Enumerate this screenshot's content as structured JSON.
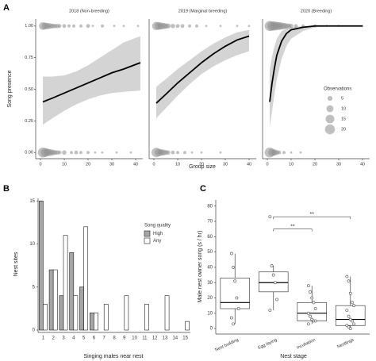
{
  "chart_data": [
    {
      "type": "facet-logistic",
      "panel": "A",
      "y_label": "Song presence",
      "x_label": "Group size",
      "xlim": [
        -2,
        43
      ],
      "ylim": [
        -0.03,
        1.03
      ],
      "xticks": [
        0,
        10,
        20,
        30,
        40
      ],
      "yticks": [
        {
          "value": 0,
          "label": "0.00"
        },
        {
          "value": 0.25,
          "label": "0.25"
        },
        {
          "value": 0.5,
          "label": "0.50"
        },
        {
          "value": 0.75,
          "label": "0.75"
        },
        {
          "value": 1,
          "label": "1.00"
        }
      ],
      "legend_title": "Observations",
      "legend_sizes": [
        5,
        10,
        15,
        20
      ],
      "facets": [
        {
          "title": "2018 (Non-breeding)",
          "x": [
            1,
            5,
            10,
            15,
            20,
            25,
            30,
            35,
            42
          ],
          "fit": [
            0.4,
            0.43,
            0.47,
            0.51,
            0.55,
            0.59,
            0.63,
            0.66,
            0.71
          ],
          "lower": [
            0.22,
            0.27,
            0.33,
            0.38,
            0.42,
            0.45,
            0.47,
            0.48,
            0.49
          ],
          "upper": [
            0.6,
            0.6,
            0.61,
            0.64,
            0.69,
            0.75,
            0.81,
            0.87,
            0.92
          ],
          "present": {
            "x": [
              1,
              2,
              3,
              4,
              5,
              6,
              7,
              8,
              10,
              12,
              14,
              17,
              20,
              22,
              26,
              31,
              35,
              41
            ],
            "n": [
              12,
              10,
              8,
              6,
              5,
              4,
              4,
              3,
              3,
              2,
              2,
              2,
              3,
              1,
              2,
              1,
              1,
              1
            ]
          },
          "absent": {
            "x": [
              1,
              2,
              3,
              4,
              5,
              6,
              7,
              8,
              10,
              13,
              15,
              17,
              20,
              23,
              26,
              32,
              38
            ],
            "n": [
              20,
              16,
              12,
              9,
              7,
              5,
              4,
              3,
              4,
              2,
              3,
              2,
              2,
              1,
              1,
              1,
              1
            ]
          }
        },
        {
          "title": "2019 (Marginal breeding)",
          "x": [
            1,
            5,
            10,
            15,
            20,
            25,
            30,
            35,
            40
          ],
          "fit": [
            0.39,
            0.46,
            0.55,
            0.63,
            0.71,
            0.78,
            0.84,
            0.89,
            0.92
          ],
          "lower": [
            0.27,
            0.35,
            0.45,
            0.54,
            0.62,
            0.68,
            0.73,
            0.77,
            0.8
          ],
          "upper": [
            0.52,
            0.58,
            0.66,
            0.73,
            0.8,
            0.86,
            0.91,
            0.95,
            0.97
          ],
          "present": {
            "x": [
              1,
              2,
              3,
              4,
              5,
              6,
              8,
              10,
              12,
              15,
              18,
              22,
              28,
              35,
              40
            ],
            "n": [
              14,
              12,
              10,
              8,
              6,
              5,
              4,
              3,
              3,
              2,
              2,
              1,
              1,
              1,
              1
            ]
          },
          "absent": {
            "x": [
              1,
              2,
              3,
              4,
              5,
              6,
              8,
              10,
              13,
              16,
              20,
              28
            ],
            "n": [
              18,
              12,
              9,
              7,
              5,
              4,
              3,
              2,
              2,
              1,
              1,
              1
            ]
          }
        },
        {
          "title": "2020 (Breeding)",
          "x": [
            1,
            2,
            3,
            4,
            6,
            8,
            10,
            15,
            20,
            30,
            40
          ],
          "fit": [
            0.4,
            0.55,
            0.67,
            0.77,
            0.88,
            0.94,
            0.97,
            0.99,
            1.0,
            1.0,
            1.0
          ],
          "lower": [
            0.2,
            0.33,
            0.46,
            0.58,
            0.74,
            0.84,
            0.9,
            0.96,
            0.99,
            1.0,
            1.0
          ],
          "upper": [
            0.65,
            0.76,
            0.84,
            0.9,
            0.96,
            0.98,
            0.99,
            1.0,
            1.0,
            1.0,
            1.0
          ],
          "present": {
            "x": [
              1,
              2,
              3,
              4,
              5,
              6,
              7,
              8,
              9,
              10,
              12,
              15,
              20,
              25,
              30,
              40
            ],
            "n": [
              20,
              18,
              16,
              14,
              12,
              10,
              8,
              6,
              5,
              4,
              3,
              2,
              2,
              1,
              1,
              1
            ]
          },
          "absent": {
            "x": [
              1,
              2,
              3,
              4,
              5,
              7,
              10,
              14
            ],
            "n": [
              20,
              12,
              8,
              5,
              3,
              2,
              1,
              1
            ]
          }
        }
      ]
    },
    {
      "type": "bar",
      "panel": "B",
      "y_label": "Nest sites",
      "x_label": "Singing males near nest",
      "categories": [
        "1",
        "2",
        "3",
        "4",
        "5",
        "6",
        "7",
        "8",
        "9",
        "10",
        "11",
        "12",
        "13",
        "14",
        "15"
      ],
      "series": [
        {
          "name": "High",
          "color": "#a6a6a6",
          "values": [
            15,
            7,
            4,
            9,
            5,
            2,
            0,
            0,
            0,
            0,
            0,
            0,
            0,
            0,
            0
          ]
        },
        {
          "name": "Any",
          "color": "#ffffff",
          "values": [
            3,
            7,
            11,
            4,
            12,
            2,
            3,
            0,
            4,
            0,
            3,
            0,
            4,
            0,
            1
          ]
        }
      ],
      "ylim": [
        0,
        15.3
      ],
      "yticks": [
        0,
        5,
        10,
        15
      ],
      "legend_title": "Song quality"
    },
    {
      "type": "box",
      "panel": "C",
      "y_label": "Male nest owner song (s / hr)",
      "x_label": "Nest stage",
      "categories": [
        "Nest building",
        "Egg laying",
        "Incubation",
        "Nestlings"
      ],
      "ylim": [
        -2,
        84
      ],
      "yticks": [
        0,
        10,
        20,
        30,
        40,
        50,
        60,
        70,
        80
      ],
      "boxes": [
        {
          "min": 3,
          "q1": 13,
          "median": 17,
          "q3": 33,
          "max": 49,
          "points": [
            49,
            40,
            31,
            20,
            13,
            7,
            3
          ]
        },
        {
          "min": 12,
          "q1": 24,
          "median": 30,
          "q3": 37,
          "max": 41,
          "points": [
            73,
            41,
            35,
            30,
            19,
            12
          ]
        },
        {
          "min": 3,
          "q1": 5,
          "median": 10,
          "q3": 17,
          "max": 28,
          "points": [
            28,
            24,
            20,
            17,
            13,
            10,
            8,
            6,
            5,
            5,
            3
          ]
        },
        {
          "min": 0,
          "q1": 2,
          "median": 6,
          "q3": 15,
          "max": 34,
          "points": [
            34,
            31,
            23,
            17,
            15,
            12,
            8,
            6,
            5,
            3,
            2,
            1,
            0
          ]
        }
      ],
      "brackets": [
        {
          "from": 1,
          "to": 2,
          "y": 65,
          "label": "**"
        },
        {
          "from": 1,
          "to": 3,
          "y": 73,
          "label": "**"
        }
      ]
    }
  ]
}
